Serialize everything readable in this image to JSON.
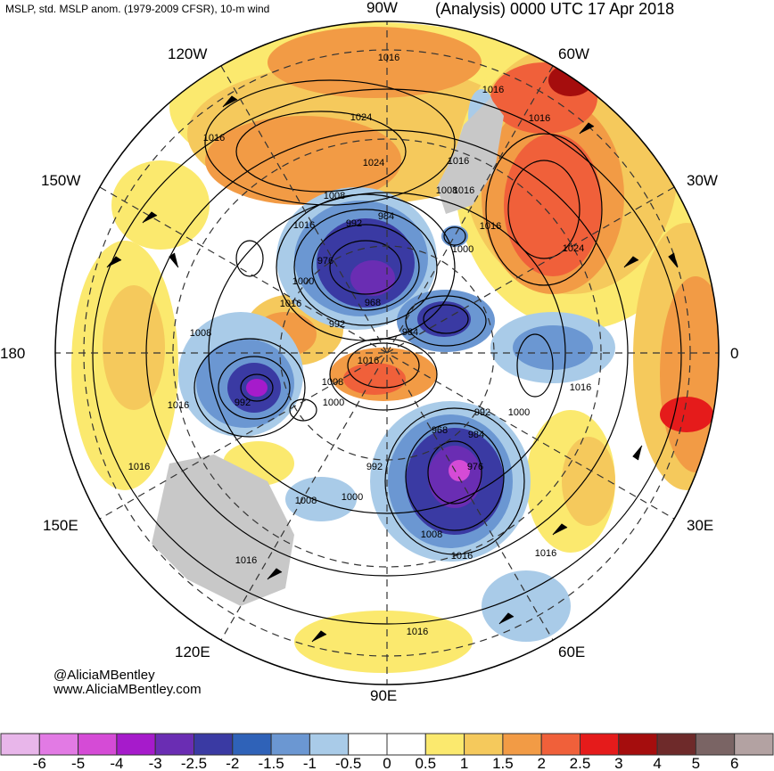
{
  "header": {
    "left_title": "MSLP, std. MSLP anom. (1979-2009 CFSR), 10-m wind",
    "right_title": "(Analysis) 0000 UTC 17 Apr 2018"
  },
  "longitude_labels": {
    "top": "90W",
    "bottom": "90E",
    "left": "180",
    "right": "0",
    "upper_left": "120W",
    "upper_right": "60W",
    "left_upper": "150W",
    "right_upper": "30W",
    "left_lower": "150E",
    "right_lower": "30E",
    "lower_left": "120E",
    "lower_right": "60E"
  },
  "credits": {
    "twitter": "@AliciaMBentley",
    "website": "www.AliciaMBentley.com"
  },
  "isobar_labels": [
    {
      "id": "l1016a",
      "text": "1016"
    },
    {
      "id": "l1016b",
      "text": "1016"
    },
    {
      "id": "l1024a",
      "text": "1024"
    },
    {
      "id": "l1016c",
      "text": "1016"
    },
    {
      "id": "l1016d",
      "text": "1016"
    },
    {
      "id": "l1024b",
      "text": "1024"
    },
    {
      "id": "l1016e",
      "text": "1016"
    },
    {
      "id": "l1008a",
      "text": "1008"
    },
    {
      "id": "l1016f",
      "text": "1016"
    },
    {
      "id": "l992a",
      "text": "992"
    },
    {
      "id": "l984a",
      "text": "984"
    },
    {
      "id": "l1008b",
      "text": "1008"
    },
    {
      "id": "l1016g",
      "text": "1016"
    },
    {
      "id": "l1000a",
      "text": "1000"
    },
    {
      "id": "l1024c",
      "text": "1024"
    },
    {
      "id": "l976a",
      "text": "976"
    },
    {
      "id": "l1000b",
      "text": "1000"
    },
    {
      "id": "l1016h",
      "text": "1016"
    },
    {
      "id": "l968a",
      "text": "968"
    },
    {
      "id": "l1016i",
      "text": "1016"
    },
    {
      "id": "l992b",
      "text": "992"
    },
    {
      "id": "l984b",
      "text": "984"
    },
    {
      "id": "l1008c",
      "text": "1008"
    },
    {
      "id": "l1016j",
      "text": "1016"
    },
    {
      "id": "l1008d",
      "text": "1008"
    },
    {
      "id": "l1016k",
      "text": "1016"
    },
    {
      "id": "l1000c",
      "text": "1000"
    },
    {
      "id": "l992c",
      "text": "992"
    },
    {
      "id": "l1016l",
      "text": "1016"
    },
    {
      "id": "l992d",
      "text": "992"
    },
    {
      "id": "l1000d",
      "text": "1000"
    },
    {
      "id": "l968b",
      "text": "968"
    },
    {
      "id": "l984c",
      "text": "984"
    },
    {
      "id": "l976b",
      "text": "976"
    },
    {
      "id": "l992e",
      "text": "992"
    },
    {
      "id": "l1016m",
      "text": "1016"
    },
    {
      "id": "l1008e",
      "text": "1008"
    },
    {
      "id": "l1000e",
      "text": "1000"
    },
    {
      "id": "l1008f",
      "text": "1008"
    },
    {
      "id": "l1016n",
      "text": "1016"
    },
    {
      "id": "l1016o",
      "text": "1016"
    },
    {
      "id": "l1016p",
      "text": "1016"
    },
    {
      "id": "l1016q",
      "text": "1016"
    }
  ],
  "colorbar": {
    "labels": [
      "-6",
      "-5",
      "-4",
      "-3",
      "-2.5",
      "-2",
      "-1.5",
      "-1",
      "-0.5",
      "0",
      "0.5",
      "1",
      "1.5",
      "2",
      "2.5",
      "3",
      "4",
      "5",
      "6"
    ],
    "colors": [
      "#e8b6ea",
      "#e27ae4",
      "#d54bd6",
      "#a61bcb",
      "#6a2db3",
      "#3a3aa3",
      "#2f62b8",
      "#6b97d2",
      "#a9cbe8",
      "#ffffff",
      "#ffffff",
      "#fbe96e",
      "#f5c95c",
      "#f29b45",
      "#f0603a",
      "#e51b1b",
      "#a50d0d",
      "#6e2a2a",
      "#7a6464",
      "#b3a2a2"
    ]
  },
  "anomaly_colors": {
    "neg_strong": "#6a2db3",
    "neg_mid": "#3a3aa3",
    "neg_weak": "#6b97d2",
    "neg_light": "#a9cbe8",
    "pos_light": "#fbe96e",
    "pos_mid": "#f5c95c",
    "pos_strong": "#f29b45",
    "pos_hot": "#f0603a",
    "land": "#c8c8c8"
  }
}
